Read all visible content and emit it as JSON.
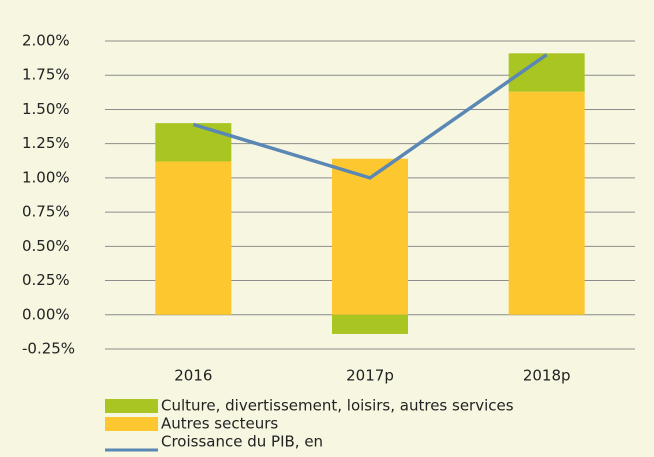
{
  "chart_data": {
    "type": "bar",
    "stacked": true,
    "categories": [
      "2016",
      "2017p",
      "2018p"
    ],
    "series": [
      {
        "name": "Culture, divertissement, loisirs, autres services",
        "color": "#a8c522",
        "type": "bar",
        "values": [
          0.28,
          -0.14,
          0.28
        ]
      },
      {
        "name": "Autres secteurs",
        "color": "#fdc82f",
        "type": "bar",
        "values": [
          1.12,
          1.14,
          1.63
        ]
      },
      {
        "name": "Croissance du PIB, en",
        "color": "#5b87b5",
        "type": "line",
        "values": [
          1.39,
          1.0,
          1.9
        ]
      }
    ],
    "ylim": [
      -0.25,
      2.0
    ],
    "yticks": [
      {
        "value": -0.25,
        "label": "-0.25%"
      },
      {
        "value": 0,
        "label": "0.00%"
      },
      {
        "value": 0.25,
        "label": "0.25%"
      },
      {
        "value": 0.5,
        "label": "0.50%"
      },
      {
        "value": 0.75,
        "label": "0.75%"
      },
      {
        "value": 1.0,
        "label": "1.00%"
      },
      {
        "value": 1.25,
        "label": "1.25%"
      },
      {
        "value": 1.5,
        "label": "1.50%"
      },
      {
        "value": 1.75,
        "label": "1.75%"
      },
      {
        "value": 2.0,
        "label": "2.00%"
      }
    ],
    "grid": true,
    "legend": "bottom"
  }
}
